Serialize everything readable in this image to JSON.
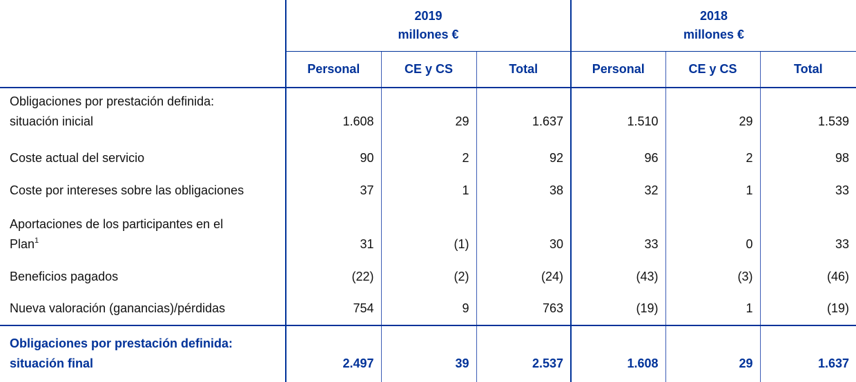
{
  "table": {
    "groups": [
      {
        "year": "2019",
        "unit": "millones €"
      },
      {
        "year": "2018",
        "unit": "millones €"
      }
    ],
    "columns": [
      "Personal",
      "CE y CS",
      "Total",
      "Personal",
      "CE y CS",
      "Total"
    ],
    "rows": [
      {
        "label": [
          "Obligaciones por prestación definida:",
          "situación inicial"
        ],
        "values": [
          "1.608",
          "29",
          "1.637",
          "1.510",
          "29",
          "1.539"
        ]
      },
      {
        "label": [
          "Coste actual del servicio"
        ],
        "values": [
          "90",
          "2",
          "92",
          "96",
          "2",
          "98"
        ]
      },
      {
        "label": [
          "Coste por intereses sobre las obligaciones"
        ],
        "values": [
          "37",
          "1",
          "38",
          "32",
          "1",
          "33"
        ]
      },
      {
        "label": [
          "Aportaciones de los participantes en el",
          "Plan"
        ],
        "note": "1",
        "values": [
          "31",
          "(1)",
          "30",
          "33",
          "0",
          "33"
        ]
      },
      {
        "label": [
          "Beneficios pagados"
        ],
        "values": [
          "(22)",
          "(2)",
          "(24)",
          "(43)",
          "(3)",
          "(46)"
        ]
      },
      {
        "label": [
          "Nueva valoración (ganancias)/pérdidas"
        ],
        "values": [
          "754",
          "9",
          "763",
          "(19)",
          "1",
          "(19)"
        ]
      }
    ],
    "total": {
      "label": [
        "Obligaciones por prestación definida:",
        "situación final"
      ],
      "values": [
        "2.497",
        "39",
        "2.537",
        "1.608",
        "29",
        "1.637"
      ]
    }
  }
}
